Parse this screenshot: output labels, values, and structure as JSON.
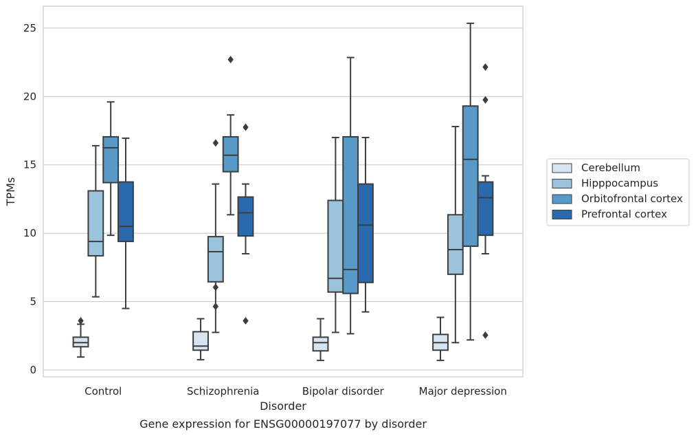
{
  "chart_data": {
    "type": "box",
    "xlabel": "Disorder",
    "ylabel": "TPMs",
    "caption": "Gene expression for ENSG00000197077 by disorder",
    "categories": [
      "Control",
      "Schizophrenia",
      "Bipolar disorder",
      "Major depression"
    ],
    "ylim": [
      -0.5,
      26.6
    ],
    "yticks": [
      0,
      5,
      10,
      15,
      20,
      25
    ],
    "grid": "horizontal",
    "legend_position": "right",
    "series": [
      {
        "name": "Cerebellum",
        "color": "#d6e4f2",
        "boxes": [
          {
            "whislo": 0.95,
            "q1": 1.7,
            "med": 2.0,
            "q3": 2.4,
            "whishi": 3.35,
            "fliers": [
              3.6
            ]
          },
          {
            "whislo": 0.75,
            "q1": 1.45,
            "med": 1.75,
            "q3": 2.8,
            "whishi": 3.75,
            "fliers": []
          },
          {
            "whislo": 0.7,
            "q1": 1.4,
            "med": 2.0,
            "q3": 2.4,
            "whishi": 3.75,
            "fliers": []
          },
          {
            "whislo": 0.7,
            "q1": 1.45,
            "med": 2.0,
            "q3": 2.6,
            "whishi": 3.85,
            "fliers": []
          }
        ]
      },
      {
        "name": "Hipppocampus",
        "color": "#9cc3dc",
        "boxes": [
          {
            "whislo": 5.35,
            "q1": 8.35,
            "med": 9.4,
            "q3": 13.1,
            "whishi": 16.4,
            "fliers": []
          },
          {
            "whislo": 2.75,
            "q1": 6.45,
            "med": 8.65,
            "q3": 9.75,
            "whishi": 13.6,
            "fliers": [
              16.6,
              6.05,
              4.65
            ]
          },
          {
            "whislo": 2.75,
            "q1": 5.7,
            "med": 6.7,
            "q3": 12.4,
            "whishi": 17.0,
            "fliers": []
          },
          {
            "whislo": 2.0,
            "q1": 7.0,
            "med": 8.8,
            "q3": 11.35,
            "whishi": 17.8,
            "fliers": []
          }
        ]
      },
      {
        "name": "Orbitofrontal cortex",
        "color": "#5799c7",
        "boxes": [
          {
            "whislo": 9.85,
            "q1": 13.7,
            "med": 16.25,
            "q3": 17.05,
            "whishi": 19.6,
            "fliers": []
          },
          {
            "whislo": 11.35,
            "q1": 14.5,
            "med": 15.7,
            "q3": 17.05,
            "whishi": 18.65,
            "fliers": [
              22.7
            ]
          },
          {
            "whislo": 2.65,
            "q1": 5.6,
            "med": 7.35,
            "q3": 17.05,
            "whishi": 22.85,
            "fliers": []
          },
          {
            "whislo": 2.2,
            "q1": 9.05,
            "med": 15.4,
            "q3": 19.3,
            "whishi": 25.35,
            "fliers": []
          }
        ]
      },
      {
        "name": "Prefrontal cortex",
        "color": "#2a6aac",
        "boxes": [
          {
            "whislo": 4.5,
            "q1": 9.4,
            "med": 10.5,
            "q3": 13.75,
            "whishi": 16.95,
            "fliers": []
          },
          {
            "whislo": 8.5,
            "q1": 9.8,
            "med": 11.5,
            "q3": 12.65,
            "whishi": 13.6,
            "fliers": [
              17.75,
              3.6
            ]
          },
          {
            "whislo": 4.25,
            "q1": 6.4,
            "med": 10.6,
            "q3": 13.6,
            "whishi": 17.0,
            "fliers": []
          },
          {
            "whislo": 8.5,
            "q1": 9.85,
            "med": 12.6,
            "q3": 13.75,
            "whishi": 14.2,
            "fliers": [
              22.15,
              19.75,
              2.55
            ]
          }
        ]
      }
    ]
  }
}
